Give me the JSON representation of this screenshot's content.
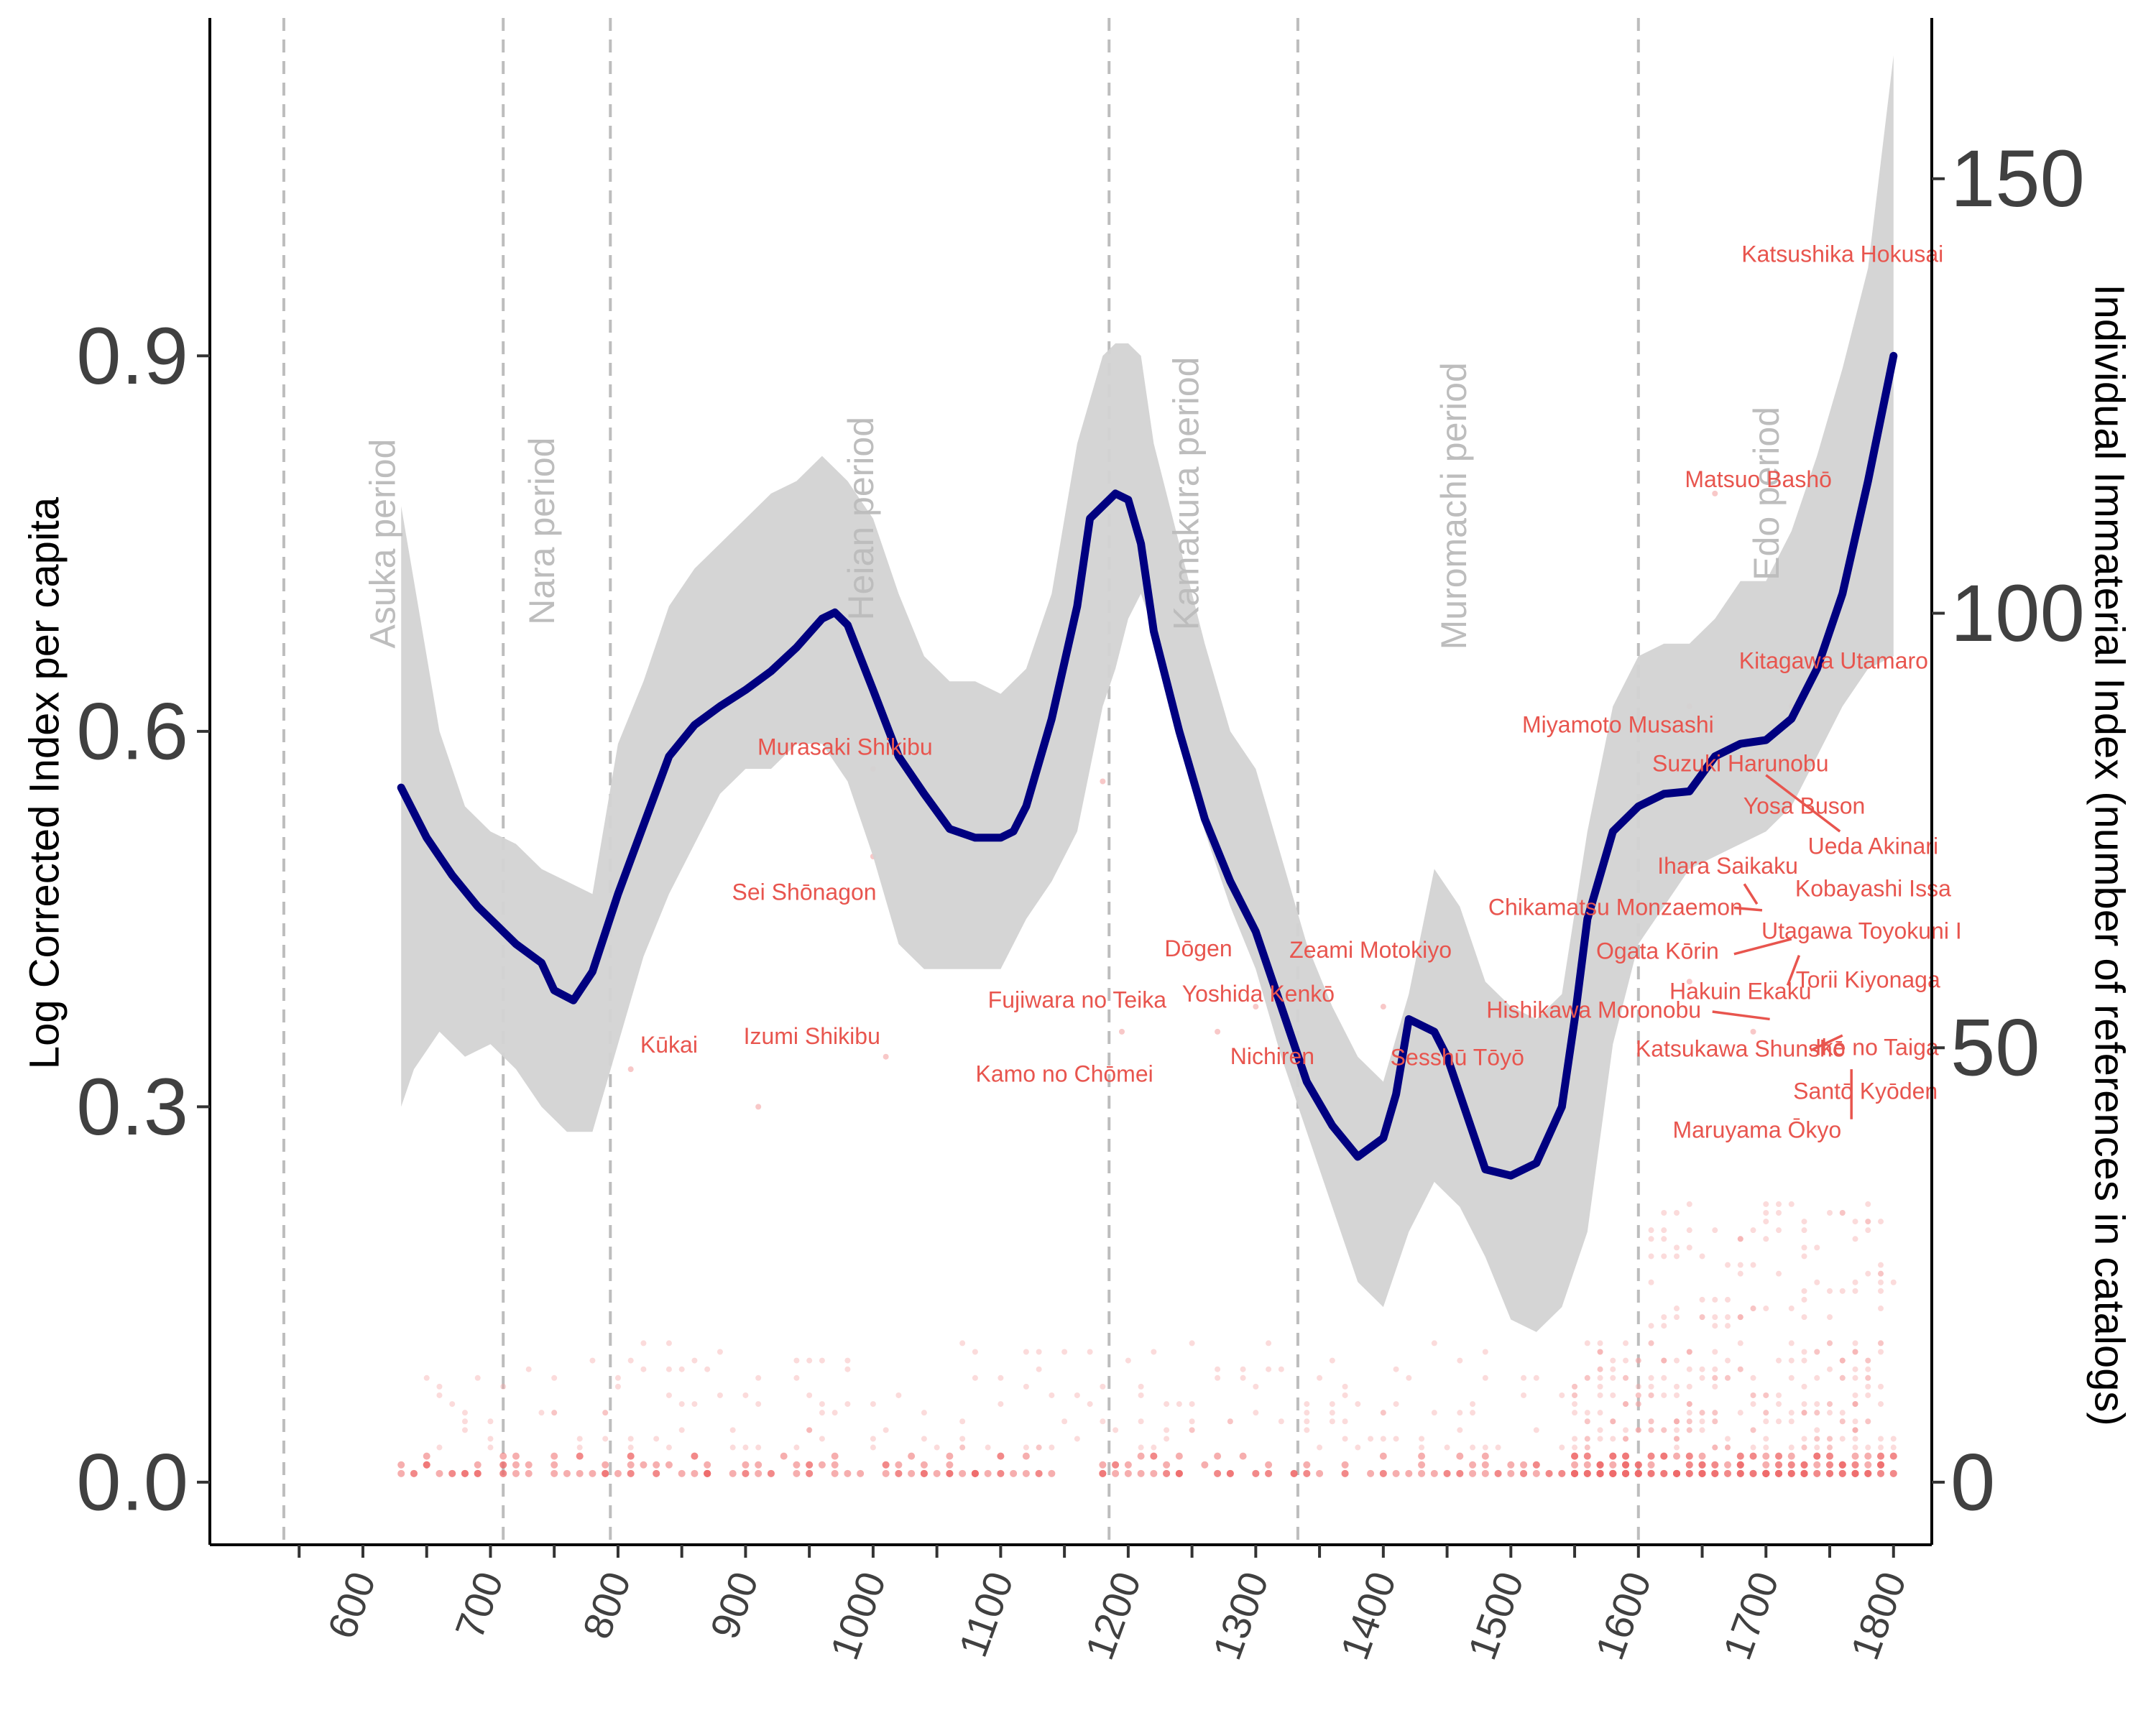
{
  "chart_data": {
    "type": "line",
    "title": "",
    "xlabel": "",
    "ylabel_left": "Log Corrected Index per capita",
    "ylabel_right": "Individual Immaterial Index (number of references in catalogs)",
    "xlim": [
      480,
      1830
    ],
    "ylim_left": [
      -0.05,
      1.17
    ],
    "ylim_right": [
      -7.2,
      168.5
    ],
    "x_ticks": [
      "600",
      "700",
      "800",
      "900",
      "1000",
      "1100",
      "1200",
      "1300",
      "1400",
      "1500",
      "1600",
      "1700",
      "1800"
    ],
    "y_ticks_left": [
      "0.0",
      "0.3",
      "0.6",
      "0.9"
    ],
    "y_ticks_right": [
      "0",
      "50",
      "100",
      "150"
    ],
    "grid": false,
    "colors": {
      "line": "#000080",
      "ribbon": "#d3d3d3",
      "points": "#f4a4a4",
      "labels": "#e8554e",
      "periods": "#bdbdbd",
      "vlines": "#bdbdbd"
    },
    "period_boundaries": [
      538,
      710,
      794,
      1185,
      1333,
      1600
    ],
    "periods": [
      {
        "name": "Asuka period",
        "x": 625,
        "y": 0.75
      },
      {
        "name": "Nara period",
        "x": 750,
        "y": 0.76
      },
      {
        "name": "Heian period",
        "x": 1000,
        "y": 0.77
      },
      {
        "name": "Kamakura period",
        "x": 1255,
        "y": 0.79
      },
      {
        "name": "Muromachi period",
        "x": 1465,
        "y": 0.78
      },
      {
        "name": "Edo period",
        "x": 1710,
        "y": 0.79
      }
    ],
    "series": [
      {
        "kind": "smooth",
        "x": [
          630,
          650,
          670,
          690,
          710,
          720,
          740,
          750,
          765,
          780,
          800,
          820,
          840,
          860,
          880,
          900,
          920,
          940,
          960,
          970,
          980,
          1000,
          1020,
          1040,
          1060,
          1080,
          1100,
          1110,
          1120,
          1140,
          1160,
          1170,
          1190,
          1200,
          1210,
          1220,
          1240,
          1260,
          1280,
          1300,
          1320,
          1340,
          1360,
          1380,
          1400,
          1410,
          1420,
          1440,
          1450,
          1460,
          1480,
          1500,
          1520,
          1540,
          1550,
          1560,
          1580,
          1600,
          1620,
          1640,
          1660,
          1680,
          1700,
          1720,
          1740,
          1760,
          1780,
          1800
        ],
        "y": [
          0.555,
          0.515,
          0.485,
          0.46,
          0.44,
          0.43,
          0.415,
          0.393,
          0.385,
          0.408,
          0.47,
          0.525,
          0.58,
          0.605,
          0.62,
          0.633,
          0.648,
          0.667,
          0.69,
          0.695,
          0.685,
          0.633,
          0.58,
          0.55,
          0.522,
          0.515,
          0.515,
          0.52,
          0.54,
          0.61,
          0.7,
          0.77,
          0.79,
          0.785,
          0.75,
          0.68,
          0.6,
          0.53,
          0.48,
          0.44,
          0.38,
          0.32,
          0.285,
          0.26,
          0.275,
          0.31,
          0.37,
          0.36,
          0.34,
          0.31,
          0.25,
          0.245,
          0.255,
          0.3,
          0.37,
          0.45,
          0.52,
          0.54,
          0.55,
          0.552,
          0.58,
          0.59,
          0.593,
          0.61,
          0.65,
          0.71,
          0.8,
          0.9
        ]
      },
      {
        "kind": "confidence_band",
        "x": [
          630,
          640,
          660,
          680,
          700,
          720,
          740,
          760,
          780,
          800,
          820,
          840,
          860,
          880,
          900,
          920,
          940,
          960,
          980,
          1000,
          1020,
          1040,
          1060,
          1080,
          1100,
          1120,
          1140,
          1160,
          1180,
          1190,
          1200,
          1210,
          1220,
          1240,
          1260,
          1280,
          1300,
          1320,
          1340,
          1360,
          1380,
          1400,
          1420,
          1440,
          1460,
          1480,
          1500,
          1520,
          1540,
          1560,
          1580,
          1600,
          1620,
          1640,
          1660,
          1680,
          1700,
          1720,
          1740,
          1760,
          1780,
          1800
        ],
        "upper": [
          0.78,
          0.72,
          0.6,
          0.54,
          0.52,
          0.51,
          0.49,
          0.48,
          0.47,
          0.59,
          0.64,
          0.7,
          0.73,
          0.75,
          0.77,
          0.79,
          0.8,
          0.82,
          0.8,
          0.77,
          0.71,
          0.66,
          0.64,
          0.64,
          0.63,
          0.65,
          0.71,
          0.83,
          0.9,
          0.91,
          0.91,
          0.9,
          0.83,
          0.75,
          0.67,
          0.6,
          0.57,
          0.5,
          0.43,
          0.38,
          0.34,
          0.32,
          0.39,
          0.49,
          0.46,
          0.4,
          0.38,
          0.37,
          0.39,
          0.52,
          0.62,
          0.66,
          0.67,
          0.67,
          0.69,
          0.72,
          0.72,
          0.76,
          0.82,
          0.89,
          0.97,
          1.14
        ],
        "lower": [
          0.3,
          0.33,
          0.36,
          0.34,
          0.35,
          0.33,
          0.3,
          0.28,
          0.28,
          0.35,
          0.42,
          0.47,
          0.51,
          0.55,
          0.57,
          0.57,
          0.59,
          0.59,
          0.56,
          0.5,
          0.43,
          0.41,
          0.41,
          0.41,
          0.41,
          0.45,
          0.48,
          0.52,
          0.62,
          0.65,
          0.69,
          0.71,
          0.68,
          0.6,
          0.52,
          0.46,
          0.41,
          0.34,
          0.28,
          0.22,
          0.16,
          0.14,
          0.2,
          0.24,
          0.22,
          0.18,
          0.13,
          0.12,
          0.14,
          0.2,
          0.35,
          0.43,
          0.46,
          0.49,
          0.5,
          0.51,
          0.52,
          0.54,
          0.58,
          0.62,
          0.65,
          0.66
        ]
      }
    ],
    "scatter_density": {
      "description": "many faint red points of individuals' reference counts near the bottom, denser after 1550",
      "x_range": [
        630,
        1800
      ]
    },
    "annotations": [
      {
        "label": "Katsushika Hokusai",
        "x": 1760,
        "y": 0.98
      },
      {
        "label": "Matsuo Bashō",
        "x": 1694,
        "y": 0.8
      },
      {
        "label": "Kitagawa Utamaro",
        "x": 1753,
        "y": 0.655
      },
      {
        "label": "Miyamoto Musashi",
        "x": 1584,
        "y": 0.604
      },
      {
        "label": "Murasaki Shikibu",
        "x": 978,
        "y": 0.586
      },
      {
        "label": "Suzuki Harunobu",
        "x": 1680,
        "y": 0.573
      },
      {
        "label": "Yosa Buson",
        "x": 1730,
        "y": 0.539
      },
      {
        "label": "Ueda Akinari",
        "x": 1784,
        "y": 0.507
      },
      {
        "label": "Ihara Saikaku",
        "x": 1670,
        "y": 0.491
      },
      {
        "label": "Sei Shōnagon",
        "x": 946,
        "y": 0.47
      },
      {
        "label": "Kobayashi Issa",
        "x": 1784,
        "y": 0.473
      },
      {
        "label": "Chikamatsu Monzaemon",
        "x": 1582,
        "y": 0.458
      },
      {
        "label": "Utagawa Toyokuni I",
        "x": 1775,
        "y": 0.439
      },
      {
        "label": "Dōgen",
        "x": 1255,
        "y": 0.425
      },
      {
        "label": "Zeami Motokiyo",
        "x": 1390,
        "y": 0.424
      },
      {
        "label": "Ogata Kōrin",
        "x": 1615,
        "y": 0.423
      },
      {
        "label": "Torii Kiyonaga",
        "x": 1780,
        "y": 0.4
      },
      {
        "label": "Yoshida Kenkō",
        "x": 1302,
        "y": 0.389
      },
      {
        "label": "Hakuin Ekaku",
        "x": 1680,
        "y": 0.391
      },
      {
        "label": "Fujiwara no Teika",
        "x": 1160,
        "y": 0.384
      },
      {
        "label": "Hishikawa Moronobu",
        "x": 1565,
        "y": 0.376
      },
      {
        "label": "Izumi Shikibu",
        "x": 952,
        "y": 0.355
      },
      {
        "label": "Kūkai",
        "x": 840,
        "y": 0.348
      },
      {
        "label": "Katsukawa Shunshō",
        "x": 1680,
        "y": 0.345
      },
      {
        "label": "Ike no Taiga",
        "x": 1787,
        "y": 0.346
      },
      {
        "label": "Nichiren",
        "x": 1313,
        "y": 0.339
      },
      {
        "label": "Sesshū Tōyō",
        "x": 1458,
        "y": 0.338
      },
      {
        "label": "Kamo no Chōmei",
        "x": 1150,
        "y": 0.325
      },
      {
        "label": "Santō Kyōden",
        "x": 1778,
        "y": 0.311
      },
      {
        "label": "Maruyama Ōkyo",
        "x": 1693,
        "y": 0.28
      }
    ],
    "annotation_leaders": [
      [
        1700,
        0.565,
        1758,
        0.52
      ],
      [
        1683,
        0.478,
        1693,
        0.462
      ],
      [
        1675,
        0.459,
        1697,
        0.457
      ],
      [
        1675,
        0.422,
        1720,
        0.434
      ],
      [
        1726,
        0.421,
        1717,
        0.397
      ],
      [
        1658,
        0.376,
        1703,
        0.37
      ],
      [
        1735,
        0.345,
        1760,
        0.357
      ],
      [
        1767,
        0.33,
        1767,
        0.29
      ]
    ]
  }
}
